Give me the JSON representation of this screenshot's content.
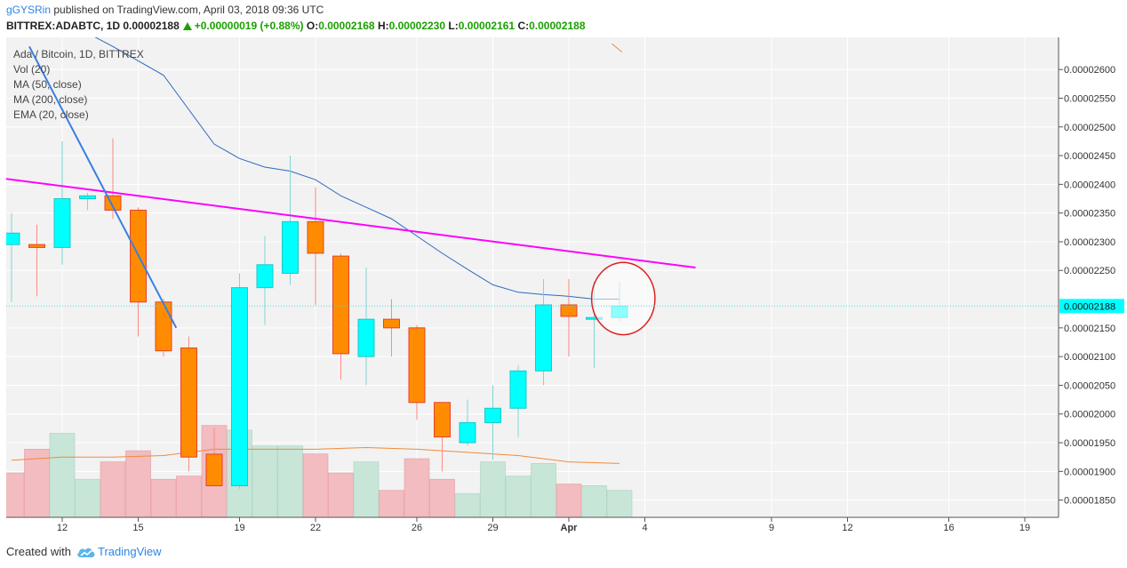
{
  "header": {
    "user": "gGYSRin",
    "published_text": "published on TradingView.com, April 03, 2018 09:36 UTC",
    "symbol": "BITTREX:ADABTC, 1D",
    "last": "0.00002188",
    "change": "+0.00000019 (+0.88%)",
    "o_label": "O:",
    "o_value": "0.00002168",
    "h_label": "H:",
    "h_value": "0.00002230",
    "l_label": "L:",
    "l_value": "0.00002161",
    "c_label": "C:",
    "c_value": "0.00002188"
  },
  "legend": {
    "title": "Ada / Bitcoin, 1D, BITTREX",
    "items": [
      "Vol (20)",
      "MA (50, close)",
      "MA (200, close)",
      "EMA (20, close)"
    ]
  },
  "footer": {
    "created_with": "Created with",
    "brand": "TradingView"
  },
  "colors": {
    "up": "#00ffff",
    "down": "#ff8c00",
    "vol_up": "#c7e6d7",
    "vol_down": "#f2bcc0",
    "ema": "#2a6bbf",
    "vol_ma": "#f08a3c",
    "magenta_trend": "#ff00ff",
    "blue_trend": "#3b7ee0",
    "circle": "#e02020",
    "price_label": "#00ffff"
  },
  "chart_data": {
    "type": "candlestick",
    "title": "Ada / Bitcoin, 1D, BITTREX",
    "y_axis_labels": [
      "0.00002600",
      "0.00002550",
      "0.00002500",
      "0.00002450",
      "0.00002400",
      "0.00002350",
      "0.00002300",
      "0.00002250",
      "0.00002150",
      "0.00002100",
      "0.00002050",
      "0.00002000",
      "0.00001950",
      "0.00001900",
      "0.00001850"
    ],
    "y_ticks": [
      2.6e-05,
      2.55e-05,
      2.5e-05,
      2.45e-05,
      2.4e-05,
      2.35e-05,
      2.3e-05,
      2.25e-05,
      2.15e-05,
      2.1e-05,
      2.05e-05,
      2e-05,
      1.95e-05,
      1.9e-05,
      1.85e-05
    ],
    "ylim": [
      1.82e-05,
      2.656e-05
    ],
    "x_ticks": [
      {
        "label": "12",
        "day": 0
      },
      {
        "label": "15",
        "day": 3
      },
      {
        "label": "19",
        "day": 7
      },
      {
        "label": "22",
        "day": 10
      },
      {
        "label": "26",
        "day": 14
      },
      {
        "label": "29",
        "day": 17
      },
      {
        "label": "Apr",
        "day": 20
      },
      {
        "label": "4",
        "day": 23
      },
      {
        "label": "9",
        "day": 28
      },
      {
        "label": "12",
        "day": 31
      },
      {
        "label": "16",
        "day": 35
      },
      {
        "label": "19",
        "day": 38
      }
    ],
    "last_price": {
      "value": 2.188e-05,
      "label": "0.00002188"
    },
    "candles": [
      {
        "day": -2,
        "open": 2.295e-05,
        "high": 2.35e-05,
        "low": 2.195e-05,
        "close": 2.315e-05
      },
      {
        "day": -1,
        "open": 2.295e-05,
        "high": 2.33e-05,
        "low": 2.205e-05,
        "close": 2.29e-05
      },
      {
        "day": 0,
        "open": 2.29e-05,
        "high": 2.475e-05,
        "low": 2.26e-05,
        "close": 2.375e-05
      },
      {
        "day": 1,
        "open": 2.375e-05,
        "high": 2.385e-05,
        "low": 2.355e-05,
        "close": 2.38e-05
      },
      {
        "day": 2,
        "open": 2.38e-05,
        "high": 2.48e-05,
        "low": 2.34e-05,
        "close": 2.355e-05
      },
      {
        "day": 3,
        "open": 2.355e-05,
        "high": 2.36e-05,
        "low": 2.135e-05,
        "close": 2.195e-05
      },
      {
        "day": 4,
        "open": 2.195e-05,
        "high": 2.2e-05,
        "low": 2.1e-05,
        "close": 2.11e-05
      },
      {
        "day": 5,
        "open": 2.115e-05,
        "high": 2.135e-05,
        "low": 1.9e-05,
        "close": 1.925e-05
      },
      {
        "day": 6,
        "open": 1.93e-05,
        "high": 1.975e-05,
        "low": 1.875e-05,
        "close": 1.875e-05
      },
      {
        "day": 7,
        "open": 1.875e-05,
        "high": 2.245e-05,
        "low": 1.87e-05,
        "close": 2.22e-05
      },
      {
        "day": 8,
        "open": 2.22e-05,
        "high": 2.31e-05,
        "low": 2.155e-05,
        "close": 2.26e-05
      },
      {
        "day": 9,
        "open": 2.245e-05,
        "high": 2.45e-05,
        "low": 2.225e-05,
        "close": 2.335e-05
      },
      {
        "day": 10,
        "open": 2.335e-05,
        "high": 2.395e-05,
        "low": 2.19e-05,
        "close": 2.28e-05
      },
      {
        "day": 11,
        "open": 2.275e-05,
        "high": 2.28e-05,
        "low": 2.06e-05,
        "close": 2.105e-05
      },
      {
        "day": 12,
        "open": 2.1e-05,
        "high": 2.255e-05,
        "low": 2.05e-05,
        "close": 2.165e-05
      },
      {
        "day": 13,
        "open": 2.165e-05,
        "high": 2.2e-05,
        "low": 2.1e-05,
        "close": 2.15e-05
      },
      {
        "day": 14,
        "open": 2.15e-05,
        "high": 2.155e-05,
        "low": 1.99e-05,
        "close": 2.02e-05
      },
      {
        "day": 15,
        "open": 2.02e-05,
        "high": 2.02e-05,
        "low": 1.9e-05,
        "close": 1.96e-05
      },
      {
        "day": 16,
        "open": 1.95e-05,
        "high": 2.025e-05,
        "low": 1.945e-05,
        "close": 1.985e-05
      },
      {
        "day": 17,
        "open": 1.985e-05,
        "high": 2.05e-05,
        "low": 1.92e-05,
        "close": 2.01e-05
      },
      {
        "day": 18,
        "open": 2.01e-05,
        "high": 2.085e-05,
        "low": 1.96e-05,
        "close": 2.075e-05
      },
      {
        "day": 19,
        "open": 2.075e-05,
        "high": 2.235e-05,
        "low": 2.05e-05,
        "close": 2.19e-05
      },
      {
        "day": 20,
        "open": 2.19e-05,
        "high": 2.235e-05,
        "low": 2.1e-05,
        "close": 2.17e-05
      },
      {
        "day": 21,
        "open": 2.168e-05,
        "high": 2.23e-05,
        "low": 2.08e-05,
        "close": 2.168e-05
      },
      {
        "day": 22,
        "open": 2.168e-05,
        "high": 2.23e-05,
        "low": 2.161e-05,
        "close": 2.188e-05
      }
    ],
    "volume": [
      {
        "day": -2,
        "value": 0.28,
        "up": false
      },
      {
        "day": -1,
        "value": 0.43,
        "up": false
      },
      {
        "day": 0,
        "value": 0.53,
        "up": true
      },
      {
        "day": 1,
        "value": 0.24,
        "up": true
      },
      {
        "day": 2,
        "value": 0.35,
        "up": false
      },
      {
        "day": 3,
        "value": 0.42,
        "up": false
      },
      {
        "day": 4,
        "value": 0.24,
        "up": false
      },
      {
        "day": 5,
        "value": 0.26,
        "up": false
      },
      {
        "day": 6,
        "value": 0.58,
        "up": false
      },
      {
        "day": 7,
        "value": 0.55,
        "up": true
      },
      {
        "day": 8,
        "value": 0.45,
        "up": true
      },
      {
        "day": 9,
        "value": 0.45,
        "up": true
      },
      {
        "day": 10,
        "value": 0.4,
        "up": false
      },
      {
        "day": 11,
        "value": 0.28,
        "up": false
      },
      {
        "day": 12,
        "value": 0.35,
        "up": true
      },
      {
        "day": 13,
        "value": 0.17,
        "up": false
      },
      {
        "day": 14,
        "value": 0.37,
        "up": false
      },
      {
        "day": 15,
        "value": 0.24,
        "up": false
      },
      {
        "day": 16,
        "value": 0.15,
        "up": true
      },
      {
        "day": 17,
        "value": 0.35,
        "up": true
      },
      {
        "day": 18,
        "value": 0.26,
        "up": true
      },
      {
        "day": 19,
        "value": 0.34,
        "up": true
      },
      {
        "day": 20,
        "value": 0.21,
        "up": false
      },
      {
        "day": 21,
        "value": 0.2,
        "up": true
      },
      {
        "day": 22,
        "value": 0.17,
        "up": true
      }
    ],
    "volume_ma": [
      {
        "day": -2,
        "value": 0.36
      },
      {
        "day": 0,
        "value": 0.38
      },
      {
        "day": 2,
        "value": 0.38
      },
      {
        "day": 4,
        "value": 0.39
      },
      {
        "day": 6,
        "value": 0.43
      },
      {
        "day": 8,
        "value": 0.43
      },
      {
        "day": 10,
        "value": 0.43
      },
      {
        "day": 12,
        "value": 0.44
      },
      {
        "day": 14,
        "value": 0.43
      },
      {
        "day": 16,
        "value": 0.41
      },
      {
        "day": 18,
        "value": 0.39
      },
      {
        "day": 20,
        "value": 0.35
      },
      {
        "day": 22,
        "value": 0.34
      }
    ],
    "ema20": [
      {
        "day": 0.5,
        "value": 2.675e-05
      },
      {
        "day": 2,
        "value": 2.64e-05
      },
      {
        "day": 4,
        "value": 2.59e-05
      },
      {
        "day": 5,
        "value": 2.53e-05
      },
      {
        "day": 6,
        "value": 2.47e-05
      },
      {
        "day": 7,
        "value": 2.445e-05
      },
      {
        "day": 8,
        "value": 2.43e-05
      },
      {
        "day": 9,
        "value": 2.423e-05
      },
      {
        "day": 10,
        "value": 2.408e-05
      },
      {
        "day": 11,
        "value": 2.38e-05
      },
      {
        "day": 12,
        "value": 2.36e-05
      },
      {
        "day": 13,
        "value": 2.34e-05
      },
      {
        "day": 14,
        "value": 2.31e-05
      },
      {
        "day": 15,
        "value": 2.28e-05
      },
      {
        "day": 16,
        "value": 2.252e-05
      },
      {
        "day": 17,
        "value": 2.225e-05
      },
      {
        "day": 18,
        "value": 2.212e-05
      },
      {
        "day": 19,
        "value": 2.208e-05
      },
      {
        "day": 20,
        "value": 2.205e-05
      },
      {
        "day": 21,
        "value": 2.2e-05
      },
      {
        "day": 22,
        "value": 2.2e-05
      }
    ],
    "drawings": {
      "magenta_trendline": [
        {
          "day": -2.3,
          "value": 2.41e-05
        },
        {
          "day": 25.0,
          "value": 2.255e-05
        }
      ],
      "blue_trendline": [
        {
          "day": -1.3,
          "value": 2.64e-05
        },
        {
          "day": 4.5,
          "value": 2.15e-05
        }
      ],
      "orange_segment": [
        {
          "day": 21.7,
          "value": 2.645e-05
        },
        {
          "day": 22.1,
          "value": 2.63e-05
        }
      ],
      "circle": {
        "day": 22.15,
        "value": 2.201e-05,
        "rx_days": 1.25,
        "ry_value": 6.3e-07
      }
    },
    "grid": true
  }
}
